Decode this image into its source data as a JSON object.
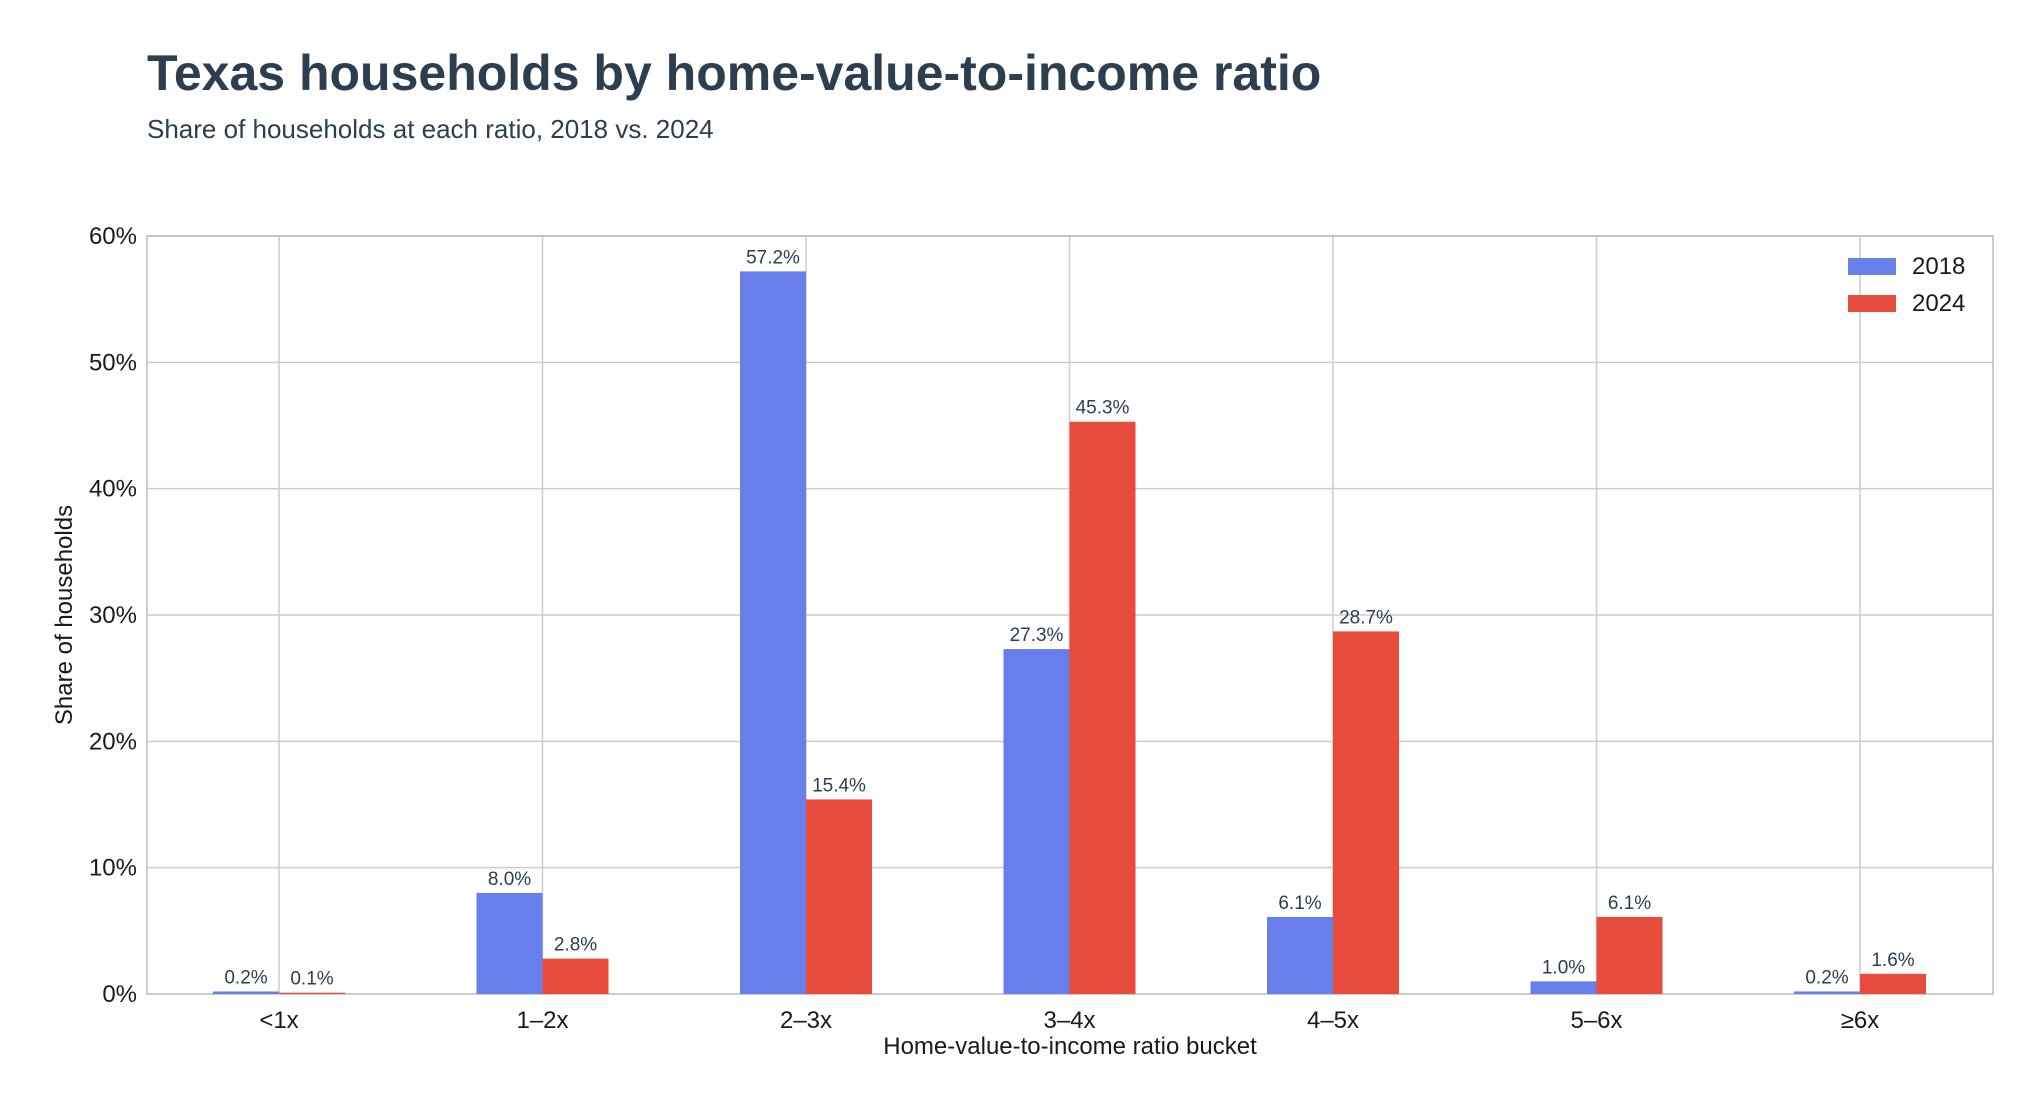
{
  "chart_data": {
    "type": "bar",
    "title": "Texas households by home-value-to-income ratio",
    "subtitle": "Share of households at each ratio, 2018 vs. 2024",
    "xlabel": "Home-value-to-income ratio bucket",
    "ylabel": "Share of households",
    "categories": [
      "<1x",
      "1–2x",
      "2–3x",
      "3–4x",
      "4–5x",
      "5–6x",
      "≥6x"
    ],
    "series": [
      {
        "name": "2018",
        "color": "#687eeb",
        "values": [
          0.2,
          8.0,
          57.2,
          27.3,
          6.1,
          1.0,
          0.2
        ],
        "labels": [
          "0.2%",
          "8.0%",
          "57.2%",
          "27.3%",
          "6.1%",
          "1.0%",
          "0.2%"
        ]
      },
      {
        "name": "2024",
        "color": "#e84c3d",
        "values": [
          0.1,
          2.8,
          15.4,
          45.3,
          28.7,
          6.1,
          1.6
        ],
        "labels": [
          "0.1%",
          "2.8%",
          "15.4%",
          "45.3%",
          "28.7%",
          "6.1%",
          "1.6%"
        ]
      }
    ],
    "ylim": [
      0,
      60
    ],
    "yticks": [
      0,
      10,
      20,
      30,
      40,
      50,
      60
    ],
    "ytick_labels": [
      "0%",
      "10%",
      "20%",
      "30%",
      "40%",
      "50%",
      "60%"
    ],
    "grid": true,
    "legend_position": "top-right"
  }
}
